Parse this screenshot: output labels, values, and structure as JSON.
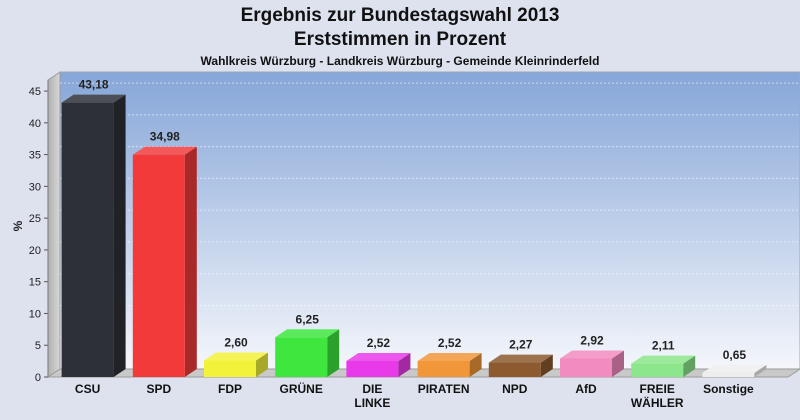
{
  "chart_data": {
    "type": "bar",
    "title": "Ergebnis zur Bundestagswahl 2013",
    "title2": "Erststimmen in Prozent",
    "subtitle": "Wahlkreis Würzburg - Landkreis Würzburg - Gemeinde Kleinrinderfeld",
    "ylabel": "%",
    "ylim": [
      0,
      48
    ],
    "yticks": [
      0,
      5,
      10,
      15,
      20,
      25,
      30,
      35,
      40,
      45
    ],
    "grid": true,
    "categories": [
      "CSU",
      "SPD",
      "FDP",
      "GRÜNE",
      "DIE LINKE",
      "PIRATEN",
      "NPD",
      "AfD",
      "FREIE WÄHLER",
      "Sonstige"
    ],
    "category_lines": [
      [
        "CSU"
      ],
      [
        "SPD"
      ],
      [
        "FDP"
      ],
      [
        "GRÜNE"
      ],
      [
        "DIE",
        "LINKE"
      ],
      [
        "PIRATEN"
      ],
      [
        "NPD"
      ],
      [
        "AfD"
      ],
      [
        "FREIE",
        "WÄHLER"
      ],
      [
        "Sonstige"
      ]
    ],
    "values": [
      43.18,
      34.98,
      2.6,
      6.25,
      2.52,
      2.52,
      2.27,
      2.92,
      2.11,
      0.65
    ],
    "value_labels": [
      "43,18",
      "34,98",
      "2,60",
      "6,25",
      "2,52",
      "2,52",
      "2,27",
      "2,92",
      "2,11",
      "0,65"
    ],
    "colors": [
      "#2e3038",
      "#f23a3a",
      "#f2f23a",
      "#3ee63e",
      "#e83ae8",
      "#f2963a",
      "#8c5a2e",
      "#f28cc0",
      "#8ce68c",
      "#eeeeee"
    ]
  }
}
